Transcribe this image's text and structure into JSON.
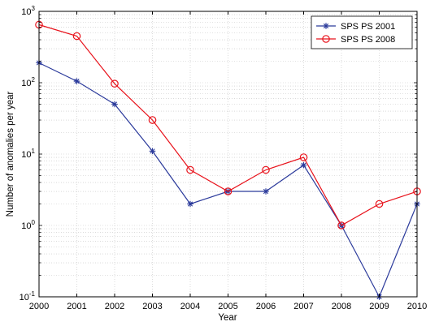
{
  "chart_data": {
    "type": "line",
    "title": "",
    "xlabel": "Year",
    "ylabel": "Number of anomalies per year",
    "yscale": "log",
    "xlim": [
      2000,
      2010
    ],
    "ylim": [
      0.1,
      1000
    ],
    "grid": true,
    "legend_position": "top-right",
    "x": [
      2000,
      2001,
      2002,
      2003,
      2004,
      2005,
      2006,
      2007,
      2008,
      2009,
      2010
    ],
    "x_tick_labels": [
      "2000",
      "2001",
      "2002",
      "2003",
      "2004",
      "2005",
      "2006",
      "2007",
      "2008",
      "2009",
      "2010"
    ],
    "y_ticks": [
      {
        "value": 0.1,
        "base": "10",
        "exp": "-1"
      },
      {
        "value": 1,
        "base": "10",
        "exp": "0"
      },
      {
        "value": 10,
        "base": "10",
        "exp": "1"
      },
      {
        "value": 100,
        "base": "10",
        "exp": "2"
      },
      {
        "value": 1000,
        "base": "10",
        "exp": "3"
      }
    ],
    "series": [
      {
        "name": "SPS PS 2001",
        "color": "#2b3a9b",
        "marker": "asterisk",
        "values": [
          190,
          105,
          50,
          11,
          2,
          3,
          3,
          7,
          1,
          0.1,
          2
        ]
      },
      {
        "name": "SPS PS 2008",
        "color": "#e8121b",
        "marker": "circle",
        "values": [
          650,
          450,
          97,
          30,
          6,
          3,
          6,
          9,
          1,
          2,
          3
        ]
      }
    ]
  }
}
